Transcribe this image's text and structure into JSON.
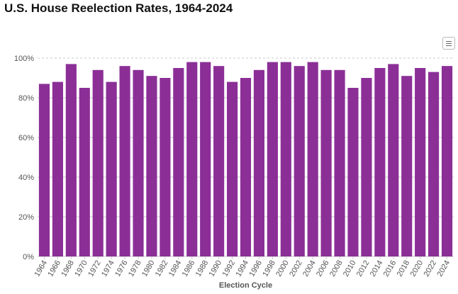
{
  "title": "U.S. House Reelection Rates, 1964-2024",
  "menu": {
    "icon": "hamburger-menu-icon"
  },
  "colors": {
    "bar": "#8b2f97",
    "grid": "#c8c8c8",
    "text": "#555555"
  },
  "chart_data": {
    "type": "bar",
    "title": "U.S. House Reelection Rates, 1964-2024",
    "xlabel": "Election Cycle",
    "ylabel": "",
    "ylim": [
      0,
      100
    ],
    "yticks": [
      0,
      20,
      40,
      60,
      80,
      100
    ],
    "ytick_labels": [
      "0%",
      "20%",
      "40%",
      "60%",
      "80%",
      "100%"
    ],
    "grid": true,
    "legend": "none",
    "categories": [
      "1964",
      "1966",
      "1968",
      "1970",
      "1972",
      "1974",
      "1976",
      "1978",
      "1980",
      "1982",
      "1984",
      "1986",
      "1988",
      "1990",
      "1992",
      "1994",
      "1996",
      "1998",
      "2000",
      "2002",
      "2004",
      "2006",
      "2008",
      "2010",
      "2012",
      "2014",
      "2016",
      "2018",
      "2020",
      "2022",
      "2024"
    ],
    "values": [
      87,
      88,
      97,
      85,
      94,
      88,
      96,
      94,
      91,
      90,
      95,
      98,
      98,
      96,
      88,
      90,
      94,
      98,
      98,
      96,
      98,
      94,
      94,
      85,
      90,
      95,
      97,
      91,
      95,
      93,
      96
    ]
  }
}
